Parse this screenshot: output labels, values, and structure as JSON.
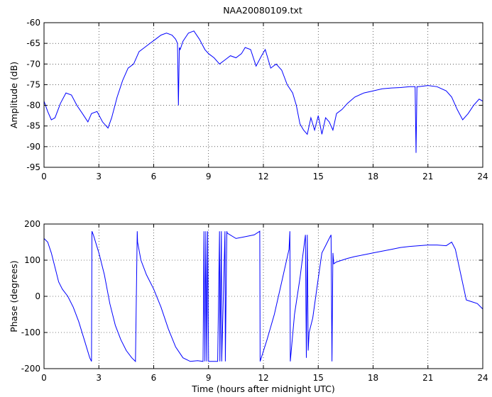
{
  "figure": {
    "title": "NAA20080109.txt"
  },
  "chart_data": [
    {
      "type": "line",
      "title": "NAA20080109.txt",
      "xlabel": "",
      "ylabel": "Amplitude (dB)",
      "xlim": [
        0,
        24
      ],
      "ylim": [
        -95,
        -60
      ],
      "xticks": [
        0,
        3,
        6,
        9,
        12,
        15,
        18,
        21,
        24
      ],
      "yticks": [
        -95,
        -90,
        -85,
        -80,
        -75,
        -70,
        -65,
        -60
      ],
      "grid": true,
      "color": "#0000ff",
      "series": [
        {
          "x": [
            0,
            0.2,
            0.4,
            0.6,
            0.9,
            1.2,
            1.5,
            1.8,
            2.1,
            2.4,
            2.6,
            2.9,
            3.2,
            3.5,
            3.7,
            4.0,
            4.3,
            4.6,
            4.9,
            5.2,
            5.5,
            5.8,
            6.1,
            6.4,
            6.7,
            7.0,
            7.2,
            7.3,
            7.35,
            7.4,
            7.45,
            7.6,
            7.9,
            8.2,
            8.5,
            8.8,
            9.0,
            9.3,
            9.6,
            9.9,
            10.2,
            10.5,
            10.8,
            11.0,
            11.3,
            11.6,
            11.9,
            12.1,
            12.4,
            12.7,
            13.0,
            13.3,
            13.6,
            13.8,
            14.0,
            14.2,
            14.4,
            14.6,
            14.8,
            15.0,
            15.2,
            15.4,
            15.6,
            15.8,
            16.0,
            16.3,
            16.6,
            17.0,
            17.5,
            18.0,
            18.5,
            19.0,
            19.5,
            20.0,
            20.3,
            20.35,
            20.4,
            20.5,
            21.0,
            21.5,
            22.0,
            22.3,
            22.6,
            22.9,
            23.2,
            23.5,
            23.8,
            24.0
          ],
          "y": [
            -79,
            -81.5,
            -83.5,
            -83,
            -79.5,
            -77,
            -77.5,
            -80,
            -82,
            -84,
            -82,
            -81.5,
            -84,
            -85.5,
            -83,
            -78,
            -74,
            -71,
            -70,
            -67,
            -66,
            -65,
            -64,
            -63,
            -62.5,
            -63,
            -64,
            -65,
            -80,
            -66,
            -66.5,
            -64.5,
            -62.5,
            -62,
            -64,
            -66.5,
            -67.5,
            -68.5,
            -70,
            -69,
            -68,
            -68.5,
            -67.5,
            -66,
            -66.5,
            -70.5,
            -68,
            -66.5,
            -71,
            -70,
            -71.5,
            -75,
            -77,
            -80,
            -84.5,
            -86,
            -87,
            -83,
            -86,
            -82.5,
            -87,
            -83,
            -84,
            -86,
            -82,
            -81,
            -79.5,
            -78,
            -77,
            -76.5,
            -76,
            -75.8,
            -75.7,
            -75.5,
            -75.5,
            -91.5,
            -75.5,
            -75.5,
            -75.2,
            -75.5,
            -76.5,
            -78,
            -81,
            -83.5,
            -82,
            -80,
            -78.5,
            -79
          ]
        }
      ]
    },
    {
      "type": "line",
      "title": "",
      "xlabel": "Time (hours after midnight UTC)",
      "ylabel": "Phase (degrees)",
      "xlim": [
        0,
        24
      ],
      "ylim": [
        -200,
        200
      ],
      "xticks": [
        0,
        3,
        6,
        9,
        12,
        15,
        18,
        21,
        24
      ],
      "yticks": [
        -200,
        -100,
        0,
        100,
        200
      ],
      "grid": true,
      "color": "#0000ff",
      "series": [
        {
          "x": [
            0,
            0.2,
            0.4,
            0.6,
            0.8,
            1.0,
            1.3,
            1.6,
            1.9,
            2.2,
            2.5,
            2.6,
            2.62,
            2.7,
            3.0,
            3.3,
            3.6,
            3.9,
            4.2,
            4.5,
            4.8,
            5.0,
            5.1,
            5.12,
            5.3,
            5.6,
            6.0,
            6.4,
            6.8,
            7.2,
            7.6,
            8.0,
            8.4,
            8.7,
            8.75,
            8.8,
            8.85,
            8.9,
            8.95,
            9.0,
            9.5,
            9.6,
            9.62,
            9.7,
            9.72,
            9.9,
            9.92,
            10.0,
            10.02,
            10.5,
            11.0,
            11.5,
            11.8,
            11.82,
            12.2,
            12.6,
            13.0,
            13.4,
            13.45,
            13.47,
            13.7,
            14.0,
            14.3,
            14.35,
            14.4,
            14.45,
            14.5,
            14.7,
            15.0,
            15.2,
            15.4,
            15.6,
            15.7,
            15.75,
            15.8,
            15.85,
            16.0,
            16.3,
            16.6,
            17.0,
            17.5,
            18.0,
            18.5,
            19.0,
            19.5,
            20.0,
            20.5,
            21.0,
            21.5,
            22.0,
            22.3,
            22.5,
            22.8,
            23.1,
            23.4,
            23.7,
            24.0
          ],
          "y": [
            160,
            150,
            120,
            80,
            40,
            20,
            0,
            -30,
            -70,
            -120,
            -170,
            -180,
            180,
            170,
            120,
            60,
            -20,
            -80,
            -120,
            -150,
            -170,
            -180,
            180,
            150,
            100,
            60,
            20,
            -30,
            -90,
            -140,
            -170,
            -180,
            -178,
            -180,
            180,
            -180,
            180,
            -180,
            180,
            -180,
            -180,
            180,
            -180,
            180,
            -180,
            180,
            -180,
            180,
            175,
            160,
            165,
            170,
            180,
            -180,
            -120,
            -50,
            40,
            130,
            180,
            -180,
            -50,
            50,
            170,
            -170,
            170,
            -150,
            -100,
            -60,
            50,
            120,
            140,
            160,
            170,
            -180,
            120,
            90,
            95,
            100,
            105,
            110,
            115,
            120,
            125,
            130,
            135,
            138,
            140,
            142,
            142,
            140,
            150,
            130,
            60,
            -10,
            -15,
            -20,
            -35
          ]
        }
      ]
    }
  ]
}
